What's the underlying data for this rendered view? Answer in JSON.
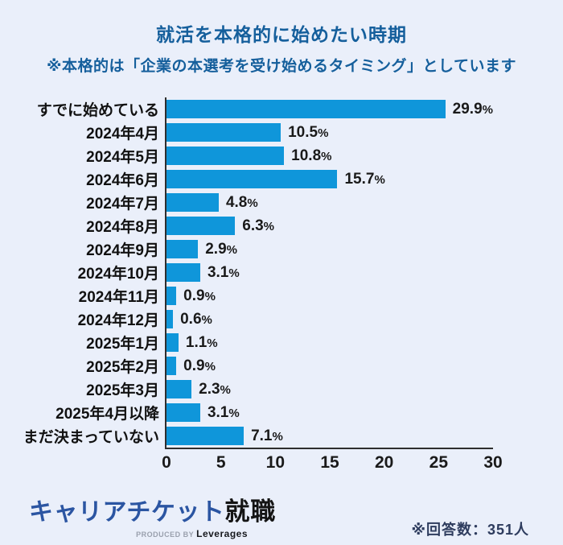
{
  "header": {
    "title": "就活を本格的に始めたい時期",
    "subtitle": "※本格的は「企業の本選考を受け始めるタイミング」としています"
  },
  "chart_data": {
    "type": "bar",
    "orientation": "horizontal",
    "title": "就活を本格的に始めたい時期",
    "subtitle": "※本格的は「企業の本選考を受け始めるタイミング」としています",
    "categories": [
      "すでに始めている",
      "2024年4月",
      "2024年5月",
      "2024年6月",
      "2024年7月",
      "2024年8月",
      "2024年9月",
      "2024年10月",
      "2024年11月",
      "2024年12月",
      "2025年1月",
      "2025年2月",
      "2025年3月",
      "2025年4月以降",
      "まだ決まっていない"
    ],
    "values": [
      29.9,
      10.5,
      10.8,
      15.7,
      4.8,
      6.3,
      2.9,
      3.1,
      0.9,
      0.6,
      1.1,
      0.9,
      2.3,
      3.1,
      7.1
    ],
    "value_labels": [
      "29.9%",
      "10.5%",
      "10.8%",
      "15.7%",
      "4.8%",
      "6.3%",
      "2.9%",
      "3.1%",
      "0.9%",
      "0.6%",
      "1.1%",
      "0.9%",
      "2.3%",
      "3.1%",
      "7.1%"
    ],
    "xlabel": "",
    "ylabel": "",
    "xlim": [
      0,
      30
    ],
    "x_ticks": [
      0,
      5,
      10,
      15,
      20,
      25,
      30
    ],
    "unit": "%",
    "grid": false,
    "legend": "none",
    "bar_color": "#0f96da"
  },
  "footer": {
    "logo_primary": "キャリアチケット",
    "logo_secondary": "就職",
    "logo_produced_by": "PRODUCED BY",
    "logo_company": "Leverages",
    "respondents_note": "※回答数：351人"
  },
  "colors": {
    "background": "#eaeffa",
    "bar": "#0f96da",
    "heading": "#155f9c",
    "axis": "#2e2e2e",
    "logo_blue": "#2b55a2",
    "note_text": "#2e3c5e"
  }
}
